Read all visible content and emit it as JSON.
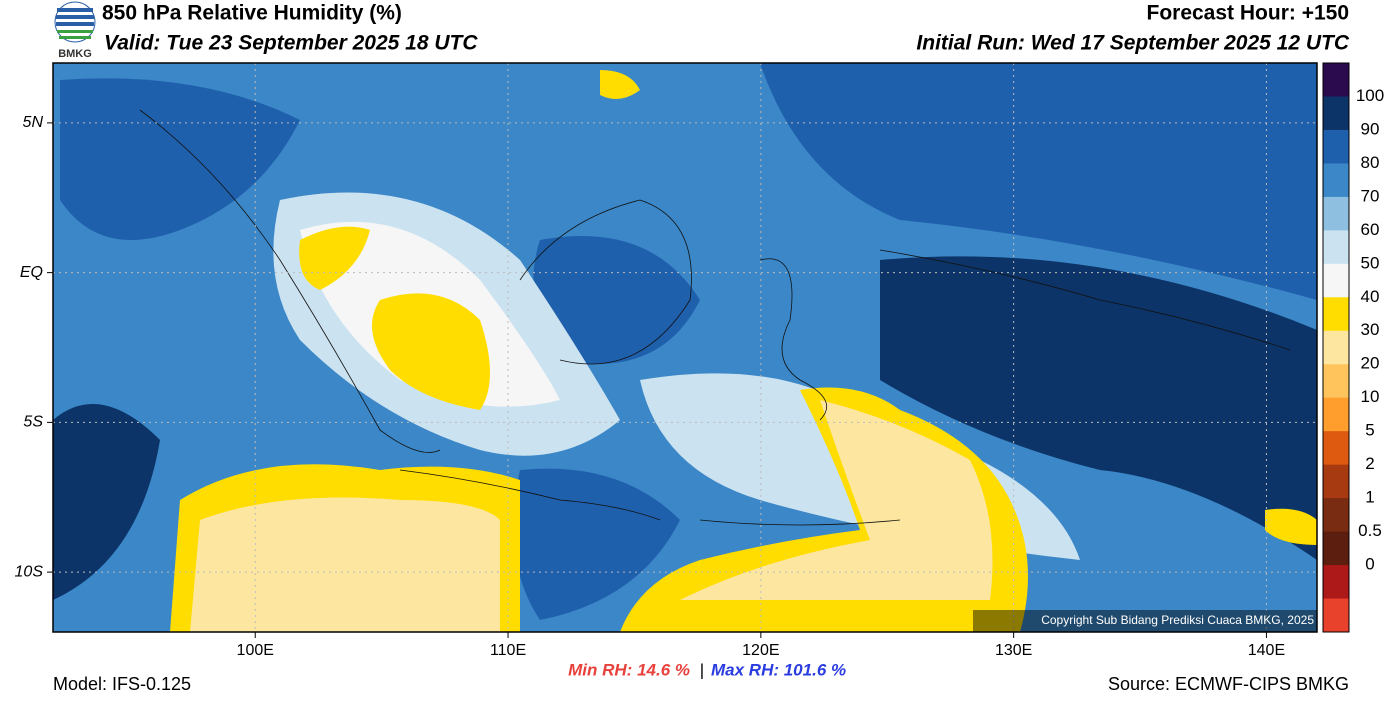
{
  "header": {
    "logo_text": "BMKG",
    "title": "850 hPa Relative Humidity (%)",
    "valid": "Valid: Tue 23 September 2025 18 UTC",
    "forecast_hour": "Forecast Hour: +150",
    "initial_run": "Initial Run: Wed 17 September 2025 12 UTC"
  },
  "map": {
    "lonlim": [
      92,
      142
    ],
    "latlim": [
      -12,
      7
    ],
    "lon_ticks": [
      {
        "value": 100,
        "label": "100E"
      },
      {
        "value": 110,
        "label": "110E"
      },
      {
        "value": 120,
        "label": "120E"
      },
      {
        "value": 130,
        "label": "130E"
      },
      {
        "value": 140,
        "label": "140E"
      }
    ],
    "lat_ticks": [
      {
        "value": 5,
        "label": "5N"
      },
      {
        "value": 0,
        "label": "EQ"
      },
      {
        "value": -5,
        "label": "5S"
      },
      {
        "value": -10,
        "label": "10S"
      }
    ],
    "copyright": "Copyright Sub Bidang Prediksi Cuaca BMKG, 2025"
  },
  "colorbar": {
    "colors": [
      "#2b0a4e",
      "#0c3468",
      "#1f60ad",
      "#3b87c7",
      "#8ebfe0",
      "#cbe2f1",
      "#f6f6f6",
      "#ffdd00",
      "#fde7a0",
      "#ffc55c",
      "#ff9e2c",
      "#de5a10",
      "#a83a12",
      "#7a2c12",
      "#5c1e0e",
      "#ad1818",
      "#e8412c"
    ],
    "labels": [
      100,
      90,
      80,
      70,
      60,
      50,
      40,
      30,
      20,
      10,
      5,
      2,
      1,
      0.5,
      0
    ]
  },
  "footer": {
    "min_rh": "Min RH:  14.6 %",
    "separator": "|",
    "max_rh": "Max RH: 101.6 %",
    "model": "Model: IFS-0.125",
    "source": "Source: ECMWF-CIPS BMKG"
  }
}
